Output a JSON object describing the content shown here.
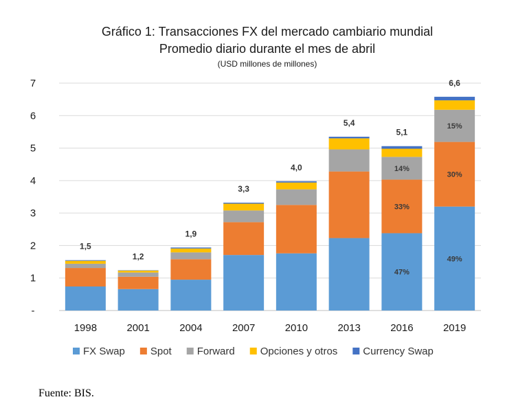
{
  "chart_data": {
    "type": "bar",
    "stacked": true,
    "title": "Gráfico 1: Transacciones FX del mercado cambiario mundial",
    "subtitle": "Promedio diario durante el mes de abril",
    "units": "(USD millones de millones)",
    "categories": [
      "1998",
      "2001",
      "2004",
      "2007",
      "2010",
      "2013",
      "2016",
      "2019"
    ],
    "series": [
      {
        "name": "FX Swap",
        "color": "#5B9BD5",
        "values": [
          0.74,
          0.66,
          0.95,
          1.71,
          1.76,
          2.23,
          2.38,
          3.2
        ]
      },
      {
        "name": "Spot",
        "color": "#ED7D31",
        "values": [
          0.57,
          0.38,
          0.63,
          1.01,
          1.49,
          2.05,
          1.65,
          1.99
        ]
      },
      {
        "name": "Forward",
        "color": "#A5A5A5",
        "values": [
          0.13,
          0.13,
          0.21,
          0.36,
          0.48,
          0.68,
          0.7,
          0.99
        ]
      },
      {
        "name": "Opciones y otros",
        "color": "#FFC000",
        "values": [
          0.09,
          0.06,
          0.12,
          0.21,
          0.21,
          0.34,
          0.25,
          0.29
        ]
      },
      {
        "name": "Currency Swap",
        "color": "#4472C4",
        "values": [
          0.02,
          0.01,
          0.03,
          0.03,
          0.04,
          0.05,
          0.08,
          0.11
        ]
      }
    ],
    "totals": [
      "1,5",
      "1,2",
      "1,9",
      "3,3",
      "4,0",
      "5,4",
      "5,1",
      "6,6"
    ],
    "segment_labels": [
      {
        "category": "2016",
        "series": "FX Swap",
        "text": "47%"
      },
      {
        "category": "2016",
        "series": "Spot",
        "text": "33%"
      },
      {
        "category": "2016",
        "series": "Forward",
        "text": "14%"
      },
      {
        "category": "2019",
        "series": "FX Swap",
        "text": "49%"
      },
      {
        "category": "2019",
        "series": "Spot",
        "text": "30%"
      },
      {
        "category": "2019",
        "series": "Forward",
        "text": "15%"
      }
    ],
    "ylim": [
      0,
      7
    ],
    "yticks": [
      0,
      1,
      2,
      3,
      4,
      5,
      6,
      7
    ],
    "ytick_labels": [
      "-",
      "1",
      "2",
      "3",
      "4",
      "5",
      "6",
      "7"
    ],
    "grid": true,
    "legend": "bottom"
  },
  "source_text": "Fuente: BIS."
}
